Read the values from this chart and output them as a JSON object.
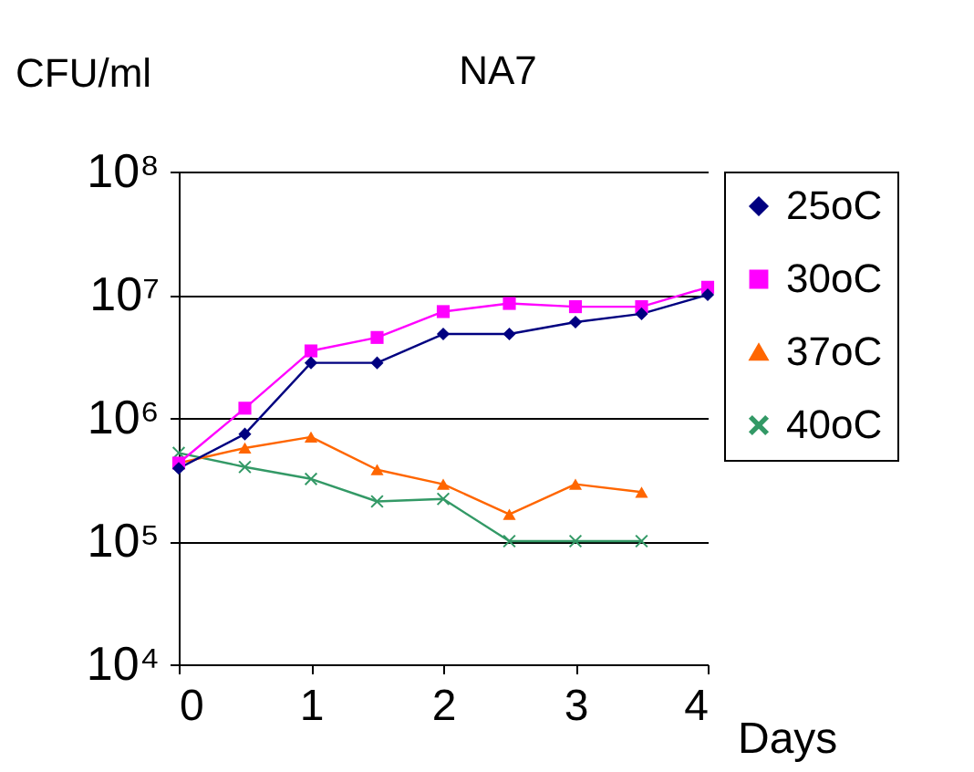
{
  "chart_data": {
    "type": "line",
    "title": "NA7",
    "xlabel": "Days",
    "ylabel": "CFU/ml",
    "x": [
      0,
      0.5,
      1,
      1.5,
      2,
      2.5,
      3,
      3.5,
      4
    ],
    "series": [
      {
        "name": "25oC",
        "color": "#000080",
        "marker": "diamond",
        "values": [
          390000,
          740000,
          2800000,
          2800000,
          4800000,
          4800000,
          6000000,
          7000000,
          10000000
        ]
      },
      {
        "name": "30oC",
        "color": "#ff00ff",
        "marker": "square",
        "values": [
          430000,
          1200000,
          3500000,
          4500000,
          7300000,
          8500000,
          8000000,
          8000000,
          11500000
        ]
      },
      {
        "name": "37oC",
        "color": "#ff6600",
        "marker": "triangle",
        "values": [
          430000,
          570000,
          700000,
          380000,
          290000,
          165000,
          290000,
          250000,
          null
        ]
      },
      {
        "name": "40oC",
        "color": "#339966",
        "marker": "cross",
        "values": [
          520000,
          400000,
          320000,
          210000,
          220000,
          100000,
          100000,
          100000,
          null
        ]
      }
    ],
    "log": "y",
    "xlim": [
      0,
      4
    ],
    "xticks": [
      0,
      1,
      2,
      3,
      4
    ],
    "ylim": [
      10000,
      100000000
    ],
    "yticks": [
      {
        "value": 10000,
        "label": "10⁴"
      },
      {
        "value": 100000,
        "label": "10⁵"
      },
      {
        "value": 1000000,
        "label": "10⁶"
      },
      {
        "value": 10000000,
        "label": "10⁷"
      },
      {
        "value": 100000000,
        "label": "10⁸"
      }
    ],
    "grid": "y",
    "legend": "right"
  }
}
